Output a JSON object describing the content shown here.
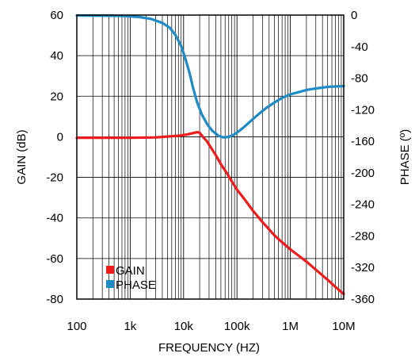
{
  "chart_data": {
    "type": "line",
    "xlabel": "FREQUENCY (HZ)",
    "ylabel_left": "GAIN (dB)",
    "ylabel_right": "PHASE (º)",
    "x_scale": "log",
    "xlim": [
      100,
      10000000
    ],
    "ylim_left": [
      -80,
      60
    ],
    "ylim_right": [
      -360,
      0
    ],
    "x_ticks": [
      {
        "value": 100,
        "label": "100"
      },
      {
        "value": 1000,
        "label": "1k"
      },
      {
        "value": 10000,
        "label": "10k"
      },
      {
        "value": 100000,
        "label": "100k"
      },
      {
        "value": 1000000,
        "label": "1M"
      },
      {
        "value": 10000000,
        "label": "10M"
      }
    ],
    "y_ticks_left": [
      "60",
      "40",
      "20",
      "0",
      "-20",
      "-40",
      "-60",
      "-80"
    ],
    "y_ticks_right": [
      "0",
      "-40",
      "-80",
      "-120",
      "-160",
      "-200",
      "-240",
      "-280",
      "-320",
      "-360"
    ],
    "grid": true,
    "legend": "bottom-left",
    "series": [
      {
        "name": "GAIN",
        "axis": "left",
        "color": "#ee1c1c",
        "x": [
          100,
          1000,
          3000,
          8000,
          12000,
          16000,
          18000,
          20000,
          23000,
          27000,
          32000,
          40000,
          50000,
          65000,
          80000,
          100000,
          150000,
          200000,
          300000,
          500000,
          700000,
          1000000,
          2000000,
          3000000,
          5000000,
          7000000,
          10000000
        ],
        "y": [
          -0.5,
          -0.5,
          -0.3,
          0.5,
          1.2,
          2.0,
          2.3,
          2.0,
          0.0,
          -2.0,
          -5.0,
          -9.0,
          -13.5,
          -18.0,
          -22.0,
          -26.0,
          -32.0,
          -36.5,
          -42.0,
          -48.5,
          -52.0,
          -55.5,
          -61.5,
          -65.5,
          -70.5,
          -74.0,
          -77.5
        ]
      },
      {
        "name": "PHASE",
        "axis": "right",
        "color": "#1e8ac6",
        "x": [
          100,
          700,
          1500,
          2500,
          4000,
          5500,
          7000,
          9000,
          11000,
          13000,
          15000,
          18000,
          22000,
          28000,
          35000,
          45000,
          55000,
          70000,
          85000,
          100000,
          130000,
          170000,
          250000,
          350000,
          500000,
          700000,
          1000000,
          2000000,
          3000000,
          5000000,
          7000000,
          10000000
        ],
        "y": [
          -0.5,
          -1.0,
          -2.5,
          -5.0,
          -10.0,
          -16.0,
          -25.0,
          -39.0,
          -57.0,
          -74.0,
          -92.0,
          -111.0,
          -126.0,
          -139.0,
          -147.0,
          -153.0,
          -155.0,
          -154.5,
          -152.0,
          -149.0,
          -143.0,
          -136.0,
          -126.0,
          -118.0,
          -111.0,
          -105.0,
          -100.5,
          -95.0,
          -93.0,
          -91.0,
          -90.5,
          -90.0
        ]
      }
    ]
  }
}
